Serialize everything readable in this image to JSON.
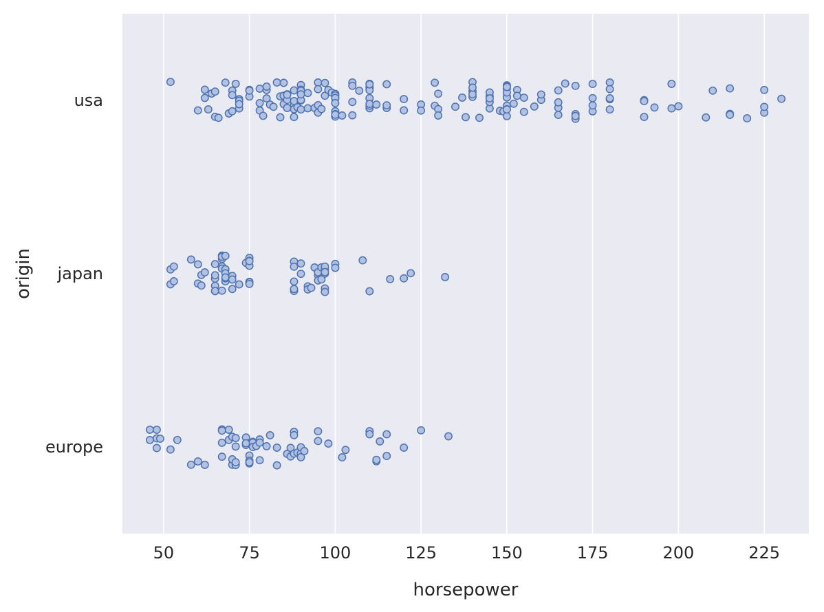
{
  "chart_data": {
    "type": "scatter",
    "xlabel": "horsepower",
    "ylabel": "origin",
    "xlim": [
      38,
      238
    ],
    "x_ticks": [
      50,
      75,
      100,
      125,
      150,
      175,
      200,
      225
    ],
    "x_tick_labels": [
      "50",
      "75",
      "100",
      "125",
      "150",
      "175",
      "200",
      "225"
    ],
    "categories": [
      "usa",
      "japan",
      "europe"
    ],
    "grid": true,
    "legend": "none",
    "colors": {
      "background": "#eaeaf2",
      "grid": "#ffffff",
      "marker_face": "#b3c2e3",
      "marker_edge": "#4c72b0"
    },
    "series": [
      {
        "category": "usa",
        "x": [
          52,
          60,
          62,
          62,
          63,
          64,
          65,
          65,
          66,
          68,
          69,
          70,
          70,
          70,
          71,
          72,
          72,
          72,
          72,
          75,
          75,
          75,
          78,
          78,
          78,
          79,
          80,
          80,
          80,
          80,
          81,
          82,
          83,
          84,
          84,
          85,
          85,
          85,
          86,
          86,
          86,
          86,
          88,
          88,
          88,
          88,
          88,
          88,
          89,
          90,
          90,
          90,
          90,
          90,
          90,
          90,
          92,
          92,
          94,
          95,
          95,
          95,
          95,
          96,
          97,
          97,
          98,
          99,
          100,
          100,
          100,
          100,
          100,
          100,
          100,
          100,
          100,
          102,
          105,
          105,
          105,
          105,
          105,
          107,
          110,
          110,
          110,
          110,
          110,
          110,
          110,
          110,
          110,
          110,
          112,
          115,
          115,
          115,
          120,
          120,
          125,
          125,
          129,
          129,
          130,
          130,
          130,
          135,
          137,
          138,
          140,
          140,
          140,
          140,
          140,
          142,
          145,
          145,
          145,
          145,
          145,
          148,
          149,
          150,
          150,
          150,
          150,
          150,
          150,
          150,
          150,
          150,
          150,
          150,
          150,
          152,
          153,
          153,
          155,
          155,
          158,
          160,
          160,
          165,
          165,
          165,
          165,
          167,
          170,
          170,
          170,
          170,
          175,
          175,
          175,
          175,
          180,
          180,
          180,
          180,
          180,
          190,
          190,
          190,
          193,
          198,
          198,
          200,
          208,
          210,
          215,
          215,
          215,
          220,
          225,
          225,
          225,
          230
        ]
      },
      {
        "category": "japan",
        "x": [
          52,
          52,
          53,
          53,
          58,
          60,
          60,
          61,
          61,
          62,
          65,
          65,
          65,
          65,
          65,
          65,
          67,
          67,
          67,
          67,
          67,
          67,
          68,
          68,
          68,
          68,
          68,
          68,
          70,
          70,
          70,
          72,
          74,
          75,
          75,
          75,
          75,
          75,
          75,
          75,
          88,
          88,
          88,
          88,
          88,
          90,
          90,
          92,
          92,
          93,
          94,
          95,
          95,
          95,
          96,
          96,
          97,
          97,
          97,
          97,
          97,
          97,
          100,
          100,
          108,
          110,
          116,
          120,
          122,
          132
        ]
      },
      {
        "category": "europe",
        "x": [
          46,
          46,
          48,
          48,
          48,
          49,
          52,
          54,
          58,
          60,
          62,
          67,
          67,
          67,
          67,
          69,
          69,
          70,
          70,
          70,
          71,
          71,
          71,
          71,
          74,
          74,
          74,
          75,
          75,
          75,
          75,
          76,
          76,
          76,
          77,
          78,
          78,
          78,
          80,
          81,
          83,
          83,
          86,
          87,
          87,
          88,
          88,
          88,
          89,
          90,
          90,
          90,
          91,
          95,
          95,
          98,
          102,
          103,
          110,
          110,
          112,
          112,
          113,
          115,
          115,
          120,
          125,
          133
        ]
      }
    ]
  }
}
